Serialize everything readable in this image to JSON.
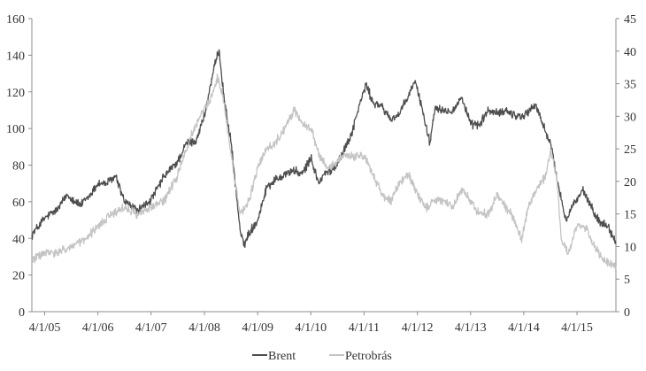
{
  "chart_data": {
    "type": "line",
    "title": "",
    "xlabel": "",
    "ylabel": "",
    "ylabel_right": "",
    "x_tick_labels": [
      "4/1/05",
      "4/1/06",
      "4/1/07",
      "4/1/08",
      "4/1/09",
      "4/1/10",
      "4/1/11",
      "4/1/12",
      "4/1/13",
      "4/1/14",
      "4/1/15"
    ],
    "ylim": [
      0,
      160
    ],
    "y_ticks": [
      "0",
      "20",
      "40",
      "60",
      "80",
      "100",
      "120",
      "140",
      "160"
    ],
    "ylim_right": [
      0,
      45
    ],
    "y_ticks_right": [
      "0",
      "5",
      "10",
      "15",
      "20",
      "25",
      "30",
      "35",
      "40",
      "45"
    ],
    "grid": false,
    "legend_position": "bottom-center",
    "series": [
      {
        "name": "Brent",
        "axis": "left",
        "color": "#4d4d4d",
        "x": [
          "2005-01-03",
          "2005-04-01",
          "2005-07-01",
          "2005-09-01",
          "2005-12-01",
          "2006-02-01",
          "2006-04-01",
          "2006-06-01",
          "2006-08-01",
          "2006-10-01",
          "2007-01-01",
          "2007-04-01",
          "2007-07-01",
          "2007-10-01",
          "2007-12-01",
          "2008-02-01",
          "2008-04-01",
          "2008-06-01",
          "2008-07-10",
          "2008-08-15",
          "2008-10-01",
          "2008-12-01",
          "2008-12-26",
          "2009-02-01",
          "2009-04-01",
          "2009-06-01",
          "2009-08-01",
          "2009-10-01",
          "2009-12-01",
          "2010-02-01",
          "2010-04-01",
          "2010-05-25",
          "2010-07-01",
          "2010-09-01",
          "2010-11-01",
          "2011-01-01",
          "2011-03-01",
          "2011-04-15",
          "2011-06-01",
          "2011-08-01",
          "2011-10-01",
          "2011-12-01",
          "2012-02-01",
          "2012-03-15",
          "2012-05-01",
          "2012-06-25",
          "2012-08-01",
          "2012-10-01",
          "2012-12-01",
          "2013-02-01",
          "2013-04-01",
          "2013-06-01",
          "2013-08-01",
          "2013-10-01",
          "2013-12-01",
          "2014-02-01",
          "2014-04-01",
          "2014-06-20",
          "2014-08-01",
          "2014-10-01",
          "2014-12-01",
          "2015-01-15",
          "2015-03-01",
          "2015-05-15",
          "2015-07-01",
          "2015-09-01",
          "2015-11-01",
          "2015-12-24"
        ],
        "values": [
          42,
          51,
          56,
          64,
          58,
          63,
          70,
          70,
          74,
          60,
          55,
          61,
          74,
          82,
          92,
          93,
          107,
          131,
          143,
          116,
          92,
          45,
          36,
          43,
          50,
          68,
          72,
          75,
          77,
          75,
          84,
          70,
          75,
          78,
          86,
          96,
          113,
          124,
          114,
          112,
          105,
          108,
          118,
          126,
          112,
          92,
          112,
          110,
          110,
          117,
          102,
          102,
          110,
          108,
          110,
          107,
          107,
          113,
          104,
          92,
          66,
          50,
          58,
          66,
          58,
          49,
          47,
          37
        ]
      },
      {
        "name": "Petrobrás",
        "axis": "right",
        "color": "#c4c4c4",
        "x": [
          "2005-01-03",
          "2005-04-01",
          "2005-07-01",
          "2005-10-01",
          "2006-01-01",
          "2006-04-01",
          "2006-07-01",
          "2006-10-01",
          "2007-01-01",
          "2007-04-01",
          "2007-07-01",
          "2007-10-01",
          "2008-01-01",
          "2008-03-01",
          "2008-05-20",
          "2008-07-01",
          "2008-08-15",
          "2008-10-01",
          "2008-12-01",
          "2009-02-01",
          "2009-04-01",
          "2009-06-01",
          "2009-08-01",
          "2009-10-01",
          "2009-12-10",
          "2010-02-01",
          "2010-04-01",
          "2010-06-01",
          "2010-08-01",
          "2010-10-01",
          "2010-12-01",
          "2011-02-01",
          "2011-04-01",
          "2011-06-01",
          "2011-08-01",
          "2011-10-01",
          "2011-12-01",
          "2012-02-01",
          "2012-04-01",
          "2012-06-01",
          "2012-08-01",
          "2012-10-01",
          "2012-12-01",
          "2013-02-01",
          "2013-04-01",
          "2013-06-01",
          "2013-08-01",
          "2013-10-01",
          "2013-12-01",
          "2014-02-01",
          "2014-03-15",
          "2014-05-01",
          "2014-07-01",
          "2014-09-01",
          "2014-10-01",
          "2014-11-15",
          "2014-12-15",
          "2015-02-01",
          "2015-04-01",
          "2015-06-01",
          "2015-08-01",
          "2015-10-01",
          "2015-12-24"
        ],
        "values": [
          8,
          9,
          9,
          10,
          11,
          13,
          15,
          16,
          15,
          16,
          17,
          21,
          27,
          30,
          33,
          36,
          32,
          24,
          15,
          17,
          22,
          25,
          26,
          28,
          31,
          29,
          28,
          24,
          22,
          23,
          24,
          24,
          24,
          21,
          18,
          17,
          20,
          21,
          18,
          16,
          17,
          17,
          16,
          19,
          17,
          15,
          15,
          18,
          16,
          14,
          11,
          16,
          19,
          21,
          25,
          20,
          11,
          9,
          13,
          13,
          10,
          8,
          7
        ]
      }
    ]
  }
}
